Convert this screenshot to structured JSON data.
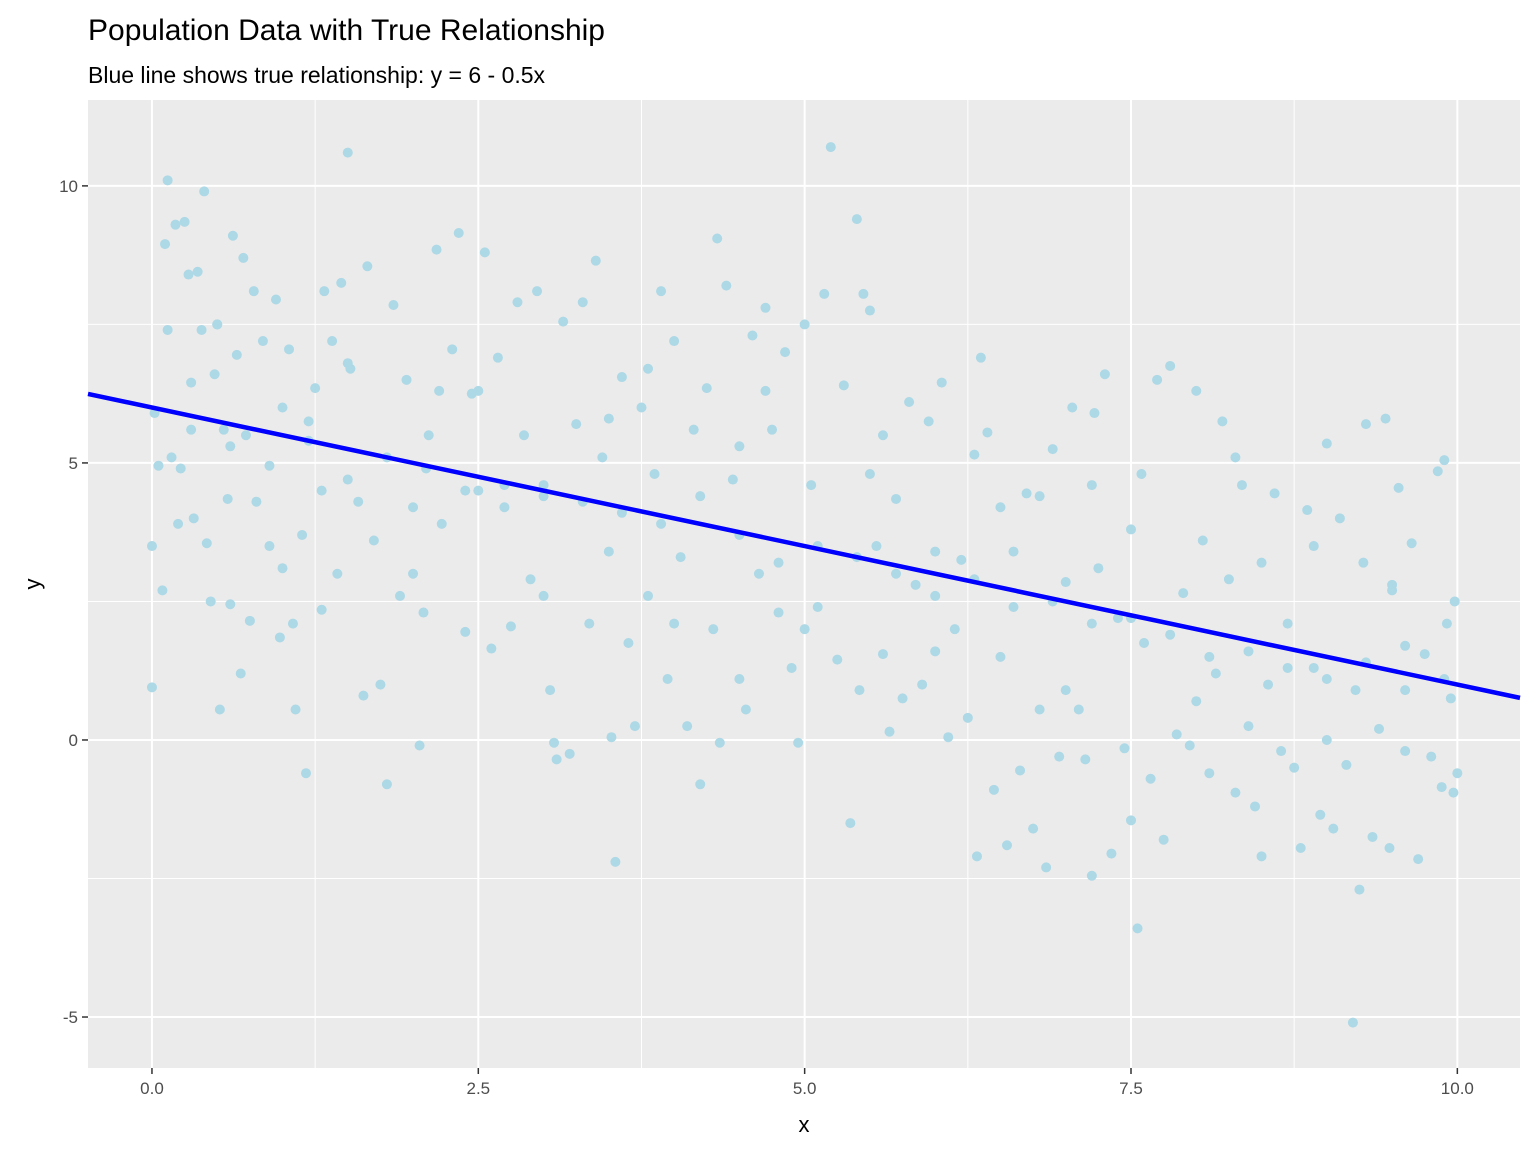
{
  "chart_data": {
    "type": "scatter",
    "title": "Population Data with True Relationship",
    "subtitle": "Blue line shows true relationship: y = 6 - 0.5x",
    "x_label": "x",
    "y_label": "y",
    "color": "#add8e6",
    "trend": {
      "intercept": 6,
      "slope": -0.5,
      "color": "#0000ff"
    },
    "xlim": [
      -0.49,
      10.48
    ],
    "ylim": [
      -5.92,
      11.55
    ],
    "xticks": [
      {
        "value": 0,
        "label": "0.0"
      },
      {
        "value": 2.5,
        "label": "2.5"
      },
      {
        "value": 5,
        "label": "5.0"
      },
      {
        "value": 7.5,
        "label": "7.5"
      },
      {
        "value": 10,
        "label": "10.0"
      }
    ],
    "yticks": [
      -5,
      0,
      5,
      10
    ],
    "xminorticks": [
      1.25,
      3.75,
      6.25,
      8.75
    ],
    "yminorticks": [
      -2.5,
      2.5,
      7.5
    ],
    "grid": true,
    "x": [
      0.0,
      0.0,
      0.02,
      0.05,
      0.08,
      0.1,
      0.12,
      0.12,
      0.15,
      0.18,
      0.2,
      0.22,
      0.25,
      0.28,
      0.3,
      0.32,
      0.35,
      0.38,
      0.4,
      0.42,
      0.45,
      0.48,
      0.5,
      0.52,
      0.55,
      0.58,
      0.6,
      0.62,
      0.65,
      0.68,
      0.7,
      0.72,
      0.75,
      0.78,
      0.8,
      0.85,
      0.9,
      0.95,
      0.98,
      1.0,
      1.05,
      1.08,
      1.1,
      1.15,
      1.18,
      1.2,
      1.25,
      1.3,
      1.32,
      1.38,
      1.42,
      1.45,
      1.5,
      1.52,
      1.58,
      1.62,
      1.65,
      1.7,
      1.75,
      1.8,
      1.85,
      1.9,
      1.95,
      2.0,
      2.05,
      2.08,
      2.12,
      2.18,
      2.22,
      2.3,
      2.35,
      2.4,
      2.45,
      2.5,
      2.55,
      2.6,
      2.65,
      2.7,
      2.75,
      2.8,
      2.85,
      2.9,
      2.95,
      3.0,
      3.05,
      3.08,
      3.1,
      3.15,
      3.2,
      3.25,
      3.3,
      3.35,
      3.4,
      3.45,
      3.5,
      3.52,
      3.55,
      3.6,
      3.65,
      3.7,
      3.75,
      3.8,
      3.85,
      3.9,
      3.95,
      4.0,
      4.05,
      4.1,
      4.15,
      4.2,
      4.25,
      4.3,
      4.33,
      4.35,
      4.4,
      4.45,
      4.5,
      4.55,
      4.6,
      4.65,
      4.7,
      4.75,
      4.8,
      4.85,
      4.9,
      4.95,
      5.0,
      5.05,
      5.1,
      5.15,
      5.2,
      5.25,
      5.3,
      5.35,
      5.4,
      5.42,
      5.45,
      5.5,
      5.55,
      5.6,
      5.65,
      5.7,
      5.75,
      5.8,
      5.85,
      5.9,
      5.95,
      6.0,
      6.05,
      6.1,
      6.15,
      6.2,
      6.25,
      6.3,
      6.32,
      6.35,
      6.4,
      6.45,
      6.5,
      6.55,
      6.6,
      6.65,
      6.7,
      6.75,
      6.8,
      6.85,
      6.9,
      6.95,
      7.0,
      7.05,
      7.1,
      7.15,
      7.2,
      7.22,
      7.25,
      7.3,
      7.35,
      7.4,
      7.45,
      7.5,
      7.55,
      7.58,
      7.6,
      7.65,
      7.7,
      7.75,
      7.8,
      7.85,
      7.9,
      7.95,
      8.0,
      8.05,
      8.1,
      8.15,
      8.2,
      8.25,
      8.3,
      8.35,
      8.4,
      8.45,
      8.5,
      8.55,
      8.6,
      8.65,
      8.7,
      8.75,
      8.8,
      8.85,
      8.9,
      8.95,
      9.0,
      9.05,
      9.1,
      9.15,
      9.2,
      9.22,
      9.25,
      9.28,
      9.3,
      9.35,
      9.4,
      9.45,
      9.48,
      9.5,
      9.55,
      9.6,
      9.65,
      9.7,
      9.75,
      9.8,
      9.85,
      9.88,
      9.9,
      9.92,
      9.95,
      9.97,
      10.0,
      9.98,
      9.6,
      8.3,
      0.3,
      0.6,
      0.9,
      1.2,
      1.5,
      1.8,
      2.1,
      2.4,
      2.7,
      3.0,
      3.3,
      3.6,
      3.9,
      4.2,
      4.5,
      4.8,
      5.1,
      5.4,
      5.7,
      6.0,
      6.3,
      6.6,
      6.9,
      7.2,
      7.5,
      7.8,
      8.1,
      8.4,
      8.7,
      9.0,
      9.3,
      9.6,
      9.9,
      1.0,
      2.0,
      3.0,
      4.0,
      5.0,
      6.0,
      7.0,
      8.0,
      9.0,
      0.5,
      1.5,
      2.5,
      3.5,
      4.5,
      5.5,
      6.5,
      7.5,
      8.5,
      9.5,
      2.2,
      3.8,
      4.7,
      5.6,
      6.8,
      7.2,
      8.9,
      1.3
    ],
    "values": [
      3.5,
      0.95,
      5.9,
      4.95,
      2.7,
      8.95,
      10.1,
      7.4,
      5.1,
      9.3,
      3.9,
      4.9,
      9.35,
      8.4,
      6.45,
      4.0,
      8.45,
      7.4,
      9.9,
      3.55,
      2.5,
      6.6,
      7.5,
      0.55,
      5.6,
      4.35,
      2.45,
      9.1,
      6.95,
      1.2,
      8.7,
      5.5,
      2.15,
      8.1,
      4.3,
      7.2,
      3.5,
      7.95,
      1.85,
      6.0,
      7.05,
      2.1,
      0.55,
      3.7,
      -0.6,
      5.75,
      6.35,
      2.35,
      8.1,
      7.2,
      3.0,
      8.25,
      10.6,
      6.7,
      4.3,
      0.8,
      8.55,
      3.6,
      1.0,
      -0.8,
      7.85,
      2.6,
      6.5,
      4.2,
      -0.1,
      2.3,
      5.5,
      8.85,
      3.9,
      7.05,
      9.15,
      1.95,
      6.25,
      4.5,
      8.8,
      1.65,
      6.9,
      4.2,
      2.05,
      7.9,
      5.5,
      2.9,
      8.1,
      4.4,
      0.9,
      -0.05,
      -0.35,
      7.55,
      -0.25,
      5.7,
      7.9,
      2.1,
      8.65,
      5.1,
      3.4,
      0.05,
      -2.2,
      6.55,
      1.75,
      0.25,
      6.0,
      2.6,
      4.8,
      8.1,
      1.1,
      7.2,
      3.3,
      0.25,
      5.6,
      -0.8,
      6.35,
      2.0,
      9.05,
      -0.05,
      8.2,
      4.7,
      1.1,
      0.55,
      7.3,
      3.0,
      7.8,
      5.6,
      2.3,
      7.0,
      1.3,
      -0.05,
      7.5,
      4.6,
      2.4,
      8.05,
      10.7,
      1.45,
      6.4,
      -1.5,
      9.4,
      0.9,
      8.05,
      7.75,
      3.5,
      1.55,
      0.15,
      4.35,
      0.75,
      6.1,
      2.8,
      1.0,
      5.75,
      3.4,
      6.45,
      0.05,
      2.0,
      3.25,
      0.4,
      5.15,
      -2.1,
      6.9,
      5.55,
      -0.9,
      1.5,
      -1.9,
      3.4,
      -0.55,
      4.45,
      -1.6,
      0.55,
      -2.3,
      5.25,
      -0.3,
      2.85,
      6.0,
      0.55,
      -0.35,
      -2.45,
      5.9,
      3.1,
      6.6,
      -2.05,
      2.2,
      -0.15,
      -1.45,
      -3.4,
      4.8,
      1.75,
      -0.7,
      6.5,
      -1.8,
      6.75,
      0.1,
      2.65,
      -0.1,
      6.3,
      3.6,
      -0.6,
      1.2,
      5.75,
      2.9,
      -0.95,
      4.6,
      0.25,
      -1.2,
      -2.1,
      1.0,
      4.45,
      -0.2,
      2.1,
      -0.5,
      -1.95,
      4.15,
      1.3,
      -1.35,
      5.35,
      -1.6,
      4.0,
      -0.45,
      -5.1,
      0.9,
      -2.7,
      3.2,
      5.7,
      -1.75,
      0.2,
      5.8,
      -1.95,
      2.8,
      4.55,
      -0.2,
      3.55,
      -2.15,
      1.55,
      -0.3,
      4.85,
      -0.85,
      5.05,
      2.1,
      0.75,
      -0.95,
      -0.6,
      2.5,
      1.7,
      5.1,
      5.6,
      5.3,
      4.95,
      5.4,
      4.7,
      5.1,
      4.9,
      4.5,
      4.6,
      4.6,
      4.3,
      4.1,
      3.9,
      4.4,
      3.7,
      3.2,
      3.5,
      3.3,
      3.0,
      2.6,
      2.9,
      2.4,
      2.5,
      2.1,
      2.2,
      1.9,
      1.5,
      1.6,
      1.3,
      1.1,
      1.4,
      0.9,
      1.1,
      3.1,
      3.0,
      2.6,
      2.1,
      2.0,
      1.6,
      0.9,
      0.7,
      0.0,
      7.5,
      6.8,
      6.3,
      5.8,
      5.3,
      4.8,
      4.2,
      3.8,
      3.2,
      2.7,
      6.3,
      6.7,
      6.3,
      5.5,
      4.4,
      4.6,
      3.5,
      4.5
    ]
  }
}
